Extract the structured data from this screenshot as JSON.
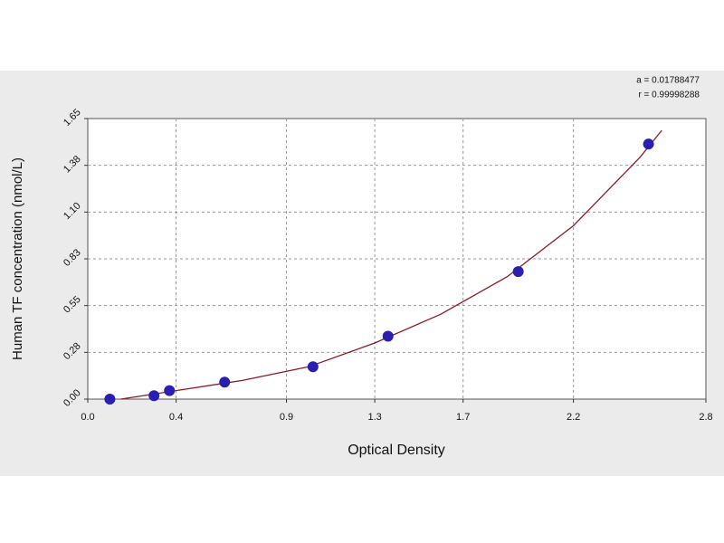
{
  "chart_data": {
    "type": "scatter",
    "x_label": "Optical Density",
    "y_label": "Human TF concentration (nmol/L)",
    "annotations": [
      "a = 0.01788477",
      "r = 0.99998288"
    ],
    "xlim": [
      0,
      2.8
    ],
    "xticks": [
      {
        "value": 0,
        "label": "0.0"
      },
      0.4,
      0.9,
      1.3,
      1.7,
      2.2,
      2.8
    ],
    "ylim": [
      0,
      1.65
    ],
    "yticks": [
      {
        "value": 0,
        "label": "0.00"
      },
      {
        "value": 0.275,
        "label": "0.28"
      },
      0.55,
      {
        "value": 0.825,
        "label": "0.83"
      },
      {
        "value": 1.1,
        "label": "1.10"
      },
      {
        "value": 1.375,
        "label": "1.38"
      },
      1.65
    ],
    "grid": true,
    "series": [
      {
        "type": "line",
        "color": "#8b1a2a",
        "x": [
          0.15,
          0.4,
          0.7,
          1.0,
          1.3,
          1.6,
          1.9,
          2.2,
          2.5,
          2.6
        ],
        "values": [
          0.0,
          0.05,
          0.11,
          0.19,
          0.33,
          0.5,
          0.72,
          1.02,
          1.42,
          1.58
        ]
      },
      {
        "type": "scatter",
        "color": "#2a1fb0",
        "x": [
          0.1,
          0.3,
          0.37,
          0.62,
          1.02,
          1.36,
          1.95,
          2.54
        ],
        "values": [
          0.0,
          0.02,
          0.05,
          0.1,
          0.19,
          0.37,
          0.75,
          1.5
        ]
      }
    ]
  }
}
